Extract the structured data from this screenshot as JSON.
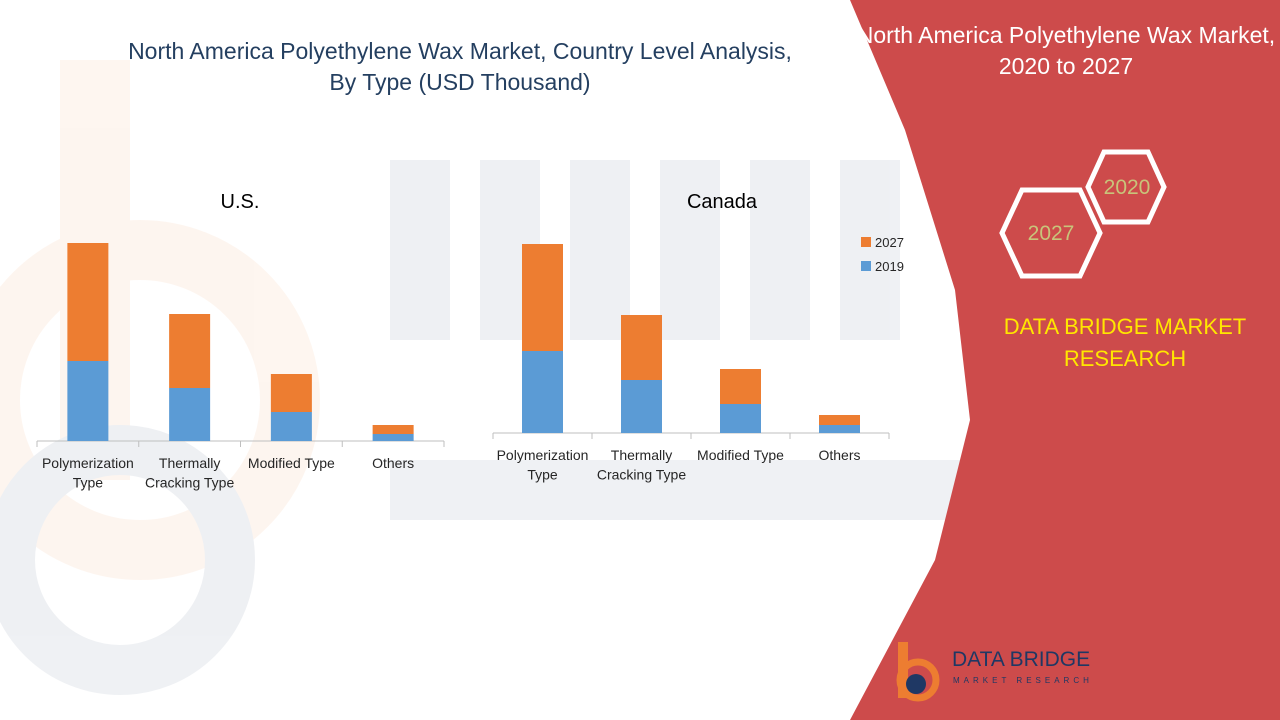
{
  "slide": {
    "title": "North America Polyethylene Wax Market, Country Level Analysis, By Type (USD Thousand)",
    "panel_title": "North America Polyethylene Wax Market, 2020 to 2027",
    "brand_text": "DATA BRIDGE MARKET RESEARCH",
    "year_badges": [
      "2020",
      "2027"
    ],
    "logo_name": "DATA BRIDGE",
    "logo_sub": "MARKET RESEARCH",
    "colors": {
      "panel": "#cd4b4b",
      "series_2019": "#5b9bd5",
      "series_2027": "#ed7d31",
      "brand_text": "#ffe600",
      "badge_text": "#c8c47a"
    }
  },
  "chart_data": [
    {
      "type": "bar",
      "stacked": true,
      "title": "U.S.",
      "categories": [
        "Polymerization Type",
        "Thermally Cracking Type",
        "Modified Type",
        "Others"
      ],
      "series": [
        {
          "name": "2019",
          "values": [
            80,
            53,
            29,
            7
          ]
        },
        {
          "name": "2027",
          "values": [
            118,
            74,
            38,
            9
          ]
        }
      ],
      "ylim": [
        0,
        200
      ],
      "grid": false,
      "legend": "none"
    },
    {
      "type": "bar",
      "stacked": true,
      "title": "Canada",
      "categories": [
        "Polymerization Type",
        "Thermally Cracking Type",
        "Modified Type",
        "Others"
      ],
      "series": [
        {
          "name": "2019",
          "values": [
            82,
            53,
            29,
            8
          ]
        },
        {
          "name": "2027",
          "values": [
            107,
            65,
            35,
            10
          ]
        }
      ],
      "ylim": [
        0,
        200
      ],
      "grid": false,
      "legend": "right"
    }
  ]
}
